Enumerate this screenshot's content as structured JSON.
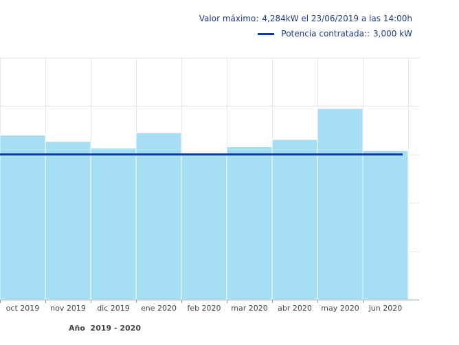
{
  "legend": {
    "max_label": "Valor máximo:",
    "max_value": "4,284kW el 23/06/2019 a las 14:00h",
    "contract_label": "Potencia contratada::",
    "contract_value": "3,000 kW"
  },
  "colors": {
    "bar": "#a6dff5",
    "bar_stroke": "#ffffff",
    "contract_line": "#0a3aa5",
    "grid": "#e6e6e6",
    "axis": "#999999",
    "legend_text": "#1f3a8a"
  },
  "chart_data": {
    "type": "bar",
    "categories": [
      "oct 2019",
      "nov 2019",
      "dic 2019",
      "ene 2020",
      "feb 2020",
      "mar 2020",
      "abr 2020",
      "may 2020",
      "jun 2020"
    ],
    "series": [
      {
        "values": [
          3.4,
          3.27,
          3.13,
          3.45,
          3.03,
          3.16,
          3.31,
          3.95,
          3.08
        ]
      }
    ],
    "reference_line": {
      "name": "Potencia contratada",
      "value": 3.0
    },
    "ylim": [
      0,
      5
    ],
    "y_gridlines": [
      1,
      2,
      3,
      4,
      5
    ],
    "grid": true,
    "xlabel": "Año  2019 - 2020",
    "ylabel": "",
    "legend_position": "top-right"
  }
}
